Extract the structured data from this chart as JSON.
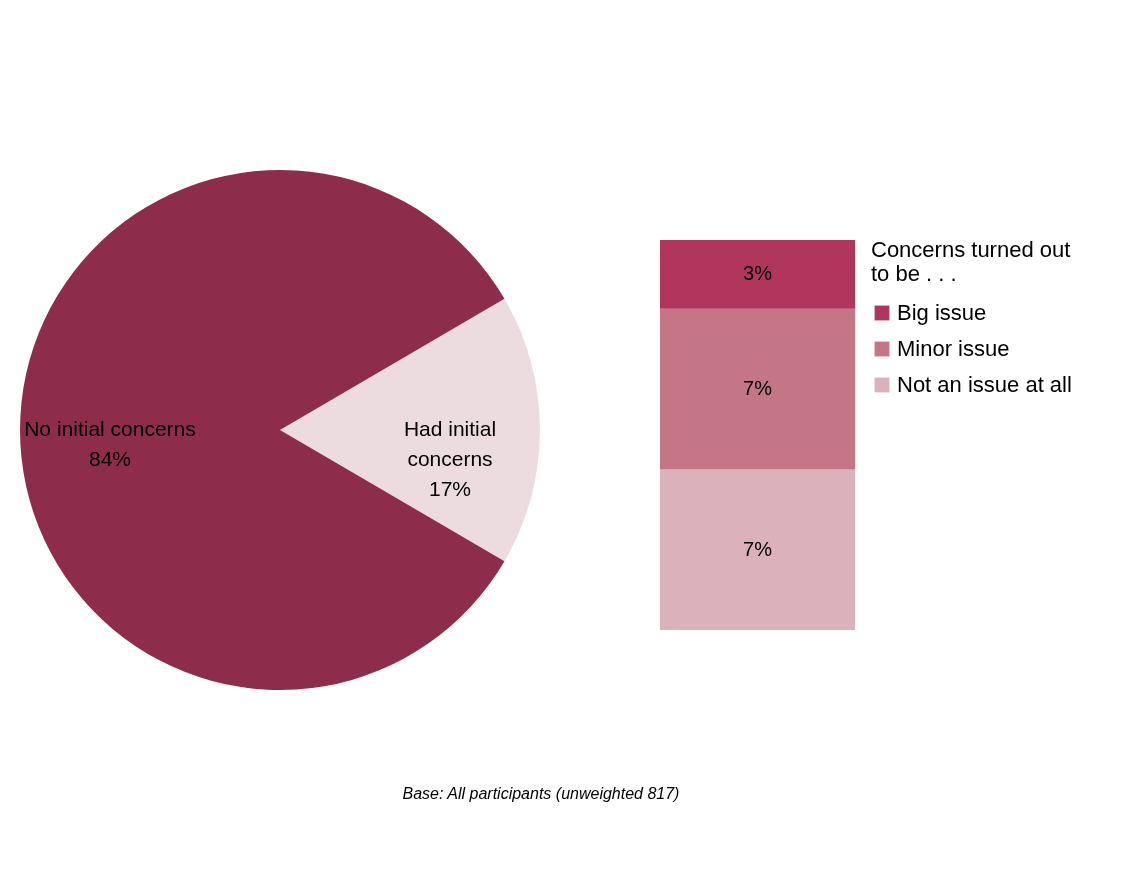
{
  "chart_data": [
    {
      "type": "pie",
      "categories": [
        "Had initial concerns",
        "No initial concerns"
      ],
      "values": [
        17,
        84
      ],
      "colors": [
        "#ecdce0",
        "#8e2c4c"
      ],
      "value_labels": [
        "17%",
        "84%"
      ],
      "legend": false,
      "annotations": [
        "Base: All participants (unweighted 817)"
      ]
    },
    {
      "type": "bar",
      "stacked": true,
      "categories": [
        null
      ],
      "legend": "right",
      "legend_title": "Concerns turned out to be . . .",
      "tick_labels": false,
      "series": [
        {
          "name": "Not an issue at all",
          "color": "#dbb1bb",
          "values": [
            7
          ],
          "value_labels": [
            "7%"
          ]
        },
        {
          "name": "Minor issue",
          "color": "#c47586",
          "values": [
            7
          ],
          "value_labels": [
            "7%"
          ]
        },
        {
          "name": "Big issue",
          "color": "#b0365e",
          "values": [
            3
          ],
          "value_labels": [
            "3%"
          ]
        }
      ]
    }
  ]
}
